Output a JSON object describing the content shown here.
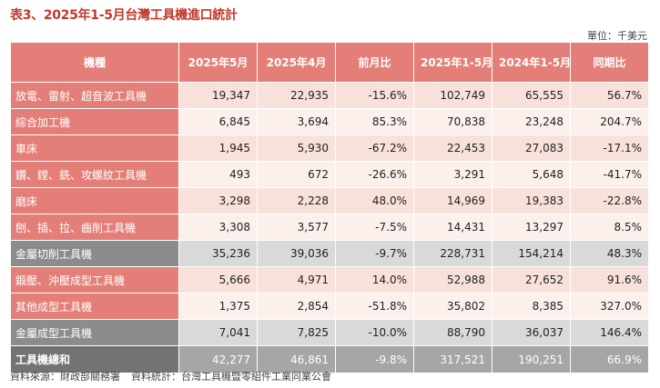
{
  "title": "表3、2025年1-5月台灣工具機進口統計",
  "unit": "單位：千美元",
  "headers": [
    "機種",
    "2025年5月",
    "2025年4月",
    "前月比",
    "2025年1-5月",
    "2024年1-5月",
    "同期比"
  ],
  "rows": [
    {
      "name": "放電、雷射、超音波工具機",
      "v": [
        "19,347",
        "22,935",
        "-15.6%",
        "102,749",
        "65,555",
        "56.7%"
      ]
    },
    {
      "name": "綜合加工機",
      "v": [
        "6,845",
        "3,694",
        "85.3%",
        "70,838",
        "23,248",
        "204.7%"
      ]
    },
    {
      "name": "車床",
      "v": [
        "1,945",
        "5,930",
        "-67.2%",
        "22,453",
        "27,083",
        "-17.1%"
      ]
    },
    {
      "name": "鑽、鏜、銑、攻螺紋工具機",
      "v": [
        "493",
        "672",
        "-26.6%",
        "3,291",
        "5,648",
        "-41.7%"
      ]
    },
    {
      "name": "磨床",
      "v": [
        "3,298",
        "2,228",
        "48.0%",
        "14,969",
        "19,383",
        "-22.8%"
      ]
    },
    {
      "name": "刨、插、拉、齒削工具機",
      "v": [
        "3,308",
        "3,577",
        "-7.5%",
        "14,431",
        "13,297",
        "8.5%"
      ]
    },
    {
      "name": "金屬切削工具機",
      "v": [
        "35,236",
        "39,036",
        "-9.7%",
        "228,731",
        "154,214",
        "48.3%"
      ]
    },
    {
      "name": "鍛壓、沖壓成型工具機",
      "v": [
        "5,666",
        "4,971",
        "14.0%",
        "52,988",
        "27,652",
        "91.6%"
      ]
    },
    {
      "name": "其他成型工具機",
      "v": [
        "1,375",
        "2,854",
        "-51.8%",
        "35,802",
        "8,385",
        "327.0%"
      ]
    },
    {
      "name": "金屬成型工具機",
      "v": [
        "7,041",
        "7,825",
        "-10.0%",
        "88,790",
        "36,037",
        "146.4%"
      ]
    },
    {
      "name": "工具機總和",
      "v": [
        "42,277",
        "46,861",
        "-9.8%",
        "317,521",
        "190,251",
        "66.9%"
      ]
    }
  ],
  "source": {
    "data_source": "資料來源：財政部關務署",
    "compiled_by": "資料統計：台灣工具機暨零組件工業同業公會"
  },
  "colors": {
    "title": "#c0392b",
    "header_bg": "#e37f78",
    "row_light_a": "#f8e1db",
    "row_light_b": "#fcf0ed",
    "subtotal_bg": "#d9d9d9",
    "subtotal_label_bg": "#8c8c8c",
    "total_bg": "#a6a6a6",
    "total_label_bg": "#737373"
  }
}
